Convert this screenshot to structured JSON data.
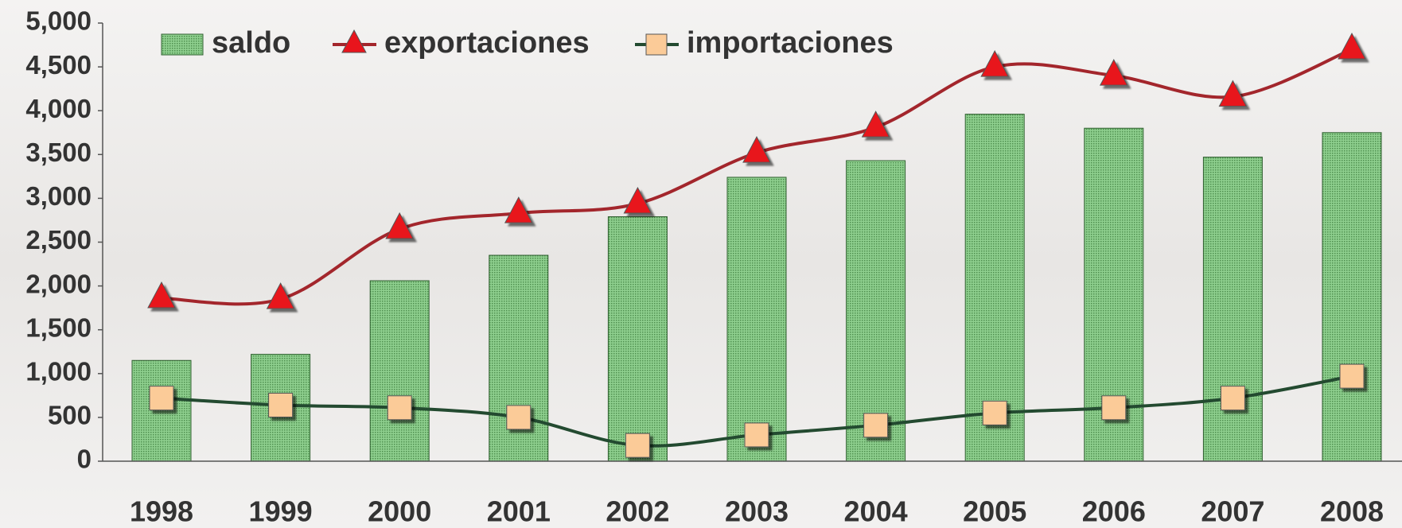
{
  "chart_data": {
    "type": "bar-line",
    "categories": [
      "1998",
      "1999",
      "2000",
      "2001",
      "2002",
      "2003",
      "2004",
      "2005",
      "2006",
      "2007",
      "2008"
    ],
    "series": [
      {
        "name": "saldo",
        "type": "bar",
        "color": "#74bd74",
        "values": [
          1150,
          1220,
          2060,
          2350,
          2790,
          3240,
          3430,
          3960,
          3800,
          3470,
          3750
        ]
      },
      {
        "name": "exportaciones",
        "type": "line",
        "color": "#a3262c",
        "marker_color": "#e8141c",
        "values": [
          1860,
          1850,
          2650,
          2830,
          2940,
          3520,
          3810,
          4500,
          4400,
          4160,
          4700
        ]
      },
      {
        "name": "importaciones",
        "type": "line",
        "color": "#234a30",
        "marker_color": "#fbcb98",
        "values": [
          720,
          640,
          610,
          500,
          180,
          300,
          410,
          550,
          610,
          720,
          970
        ]
      }
    ],
    "ylim": [
      0,
      5000
    ],
    "yticks": [
      0,
      500,
      {
        "value": 1000,
        "label": "1,000"
      },
      {
        "value": 1500,
        "label": "1,500"
      },
      {
        "value": 2000,
        "label": "2,000"
      },
      {
        "value": 2500,
        "label": "2,500"
      },
      {
        "value": 3000,
        "label": "3,000"
      },
      {
        "value": 3500,
        "label": "3,500"
      },
      {
        "value": 4000,
        "label": "4,000"
      },
      {
        "value": 4500,
        "label": "4,500"
      },
      {
        "value": 5000,
        "label": "5,000"
      }
    ],
    "legend": "top-left"
  }
}
